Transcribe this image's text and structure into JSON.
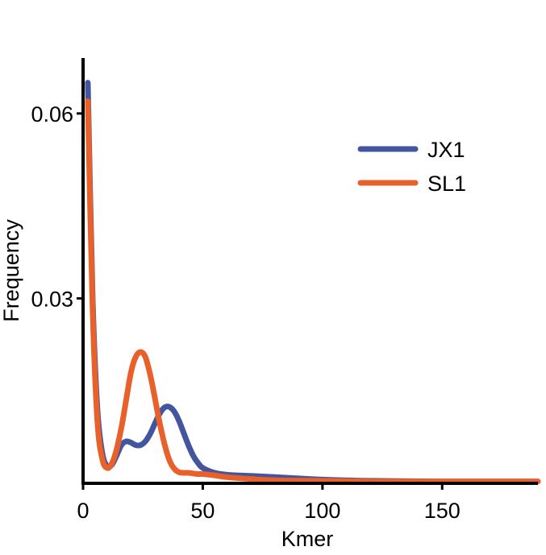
{
  "chart_data": {
    "type": "line",
    "title": "",
    "xlabel": "Kmer",
    "ylabel": "Frequency",
    "xlim": [
      0,
      190
    ],
    "ylim": [
      0,
      0.069
    ],
    "xticks": [
      0,
      50,
      100,
      150
    ],
    "xtick_labels": [
      "0",
      "50",
      "100",
      "150"
    ],
    "yticks": [
      0.03,
      0.06
    ],
    "ytick_labels": [
      "0.03",
      "0.06"
    ],
    "grid": false,
    "legend_position": "top-right",
    "series": [
      {
        "name": "JX1",
        "color": "#4455a0",
        "x": [
          2,
          4,
          6,
          8,
          10,
          12,
          14,
          16,
          18,
          20,
          22,
          24,
          26,
          28,
          30,
          32,
          34,
          36,
          38,
          40,
          42,
          44,
          46,
          48,
          50,
          55,
          60,
          70,
          80,
          90,
          100,
          120,
          150,
          190
        ],
        "y": [
          0.065,
          0.03,
          0.012,
          0.005,
          0.0028,
          0.003,
          0.0045,
          0.0062,
          0.0068,
          0.0066,
          0.0062,
          0.0062,
          0.0068,
          0.008,
          0.0097,
          0.0113,
          0.0123,
          0.0124,
          0.0117,
          0.0102,
          0.0082,
          0.0062,
          0.0045,
          0.0033,
          0.0025,
          0.0017,
          0.0014,
          0.0012,
          0.001,
          0.0008,
          0.0006,
          0.0004,
          0.0003,
          0.0003
        ]
      },
      {
        "name": "SL1",
        "color": "#e8602a",
        "x": [
          2,
          4,
          6,
          8,
          10,
          12,
          14,
          16,
          18,
          20,
          22,
          24,
          26,
          28,
          30,
          32,
          34,
          36,
          38,
          40,
          42,
          44,
          46,
          48,
          50,
          55,
          60,
          70,
          80,
          100,
          120,
          150,
          190
        ],
        "y": [
          0.062,
          0.028,
          0.01,
          0.004,
          0.0025,
          0.0032,
          0.0055,
          0.009,
          0.0135,
          0.018,
          0.0205,
          0.0213,
          0.0205,
          0.0177,
          0.0138,
          0.0098,
          0.0064,
          0.0038,
          0.0024,
          0.0018,
          0.0017,
          0.0017,
          0.0016,
          0.0015,
          0.0015,
          0.0013,
          0.001,
          0.0007,
          0.0005,
          0.0004,
          0.0003,
          0.0003,
          0.0003
        ]
      }
    ]
  }
}
